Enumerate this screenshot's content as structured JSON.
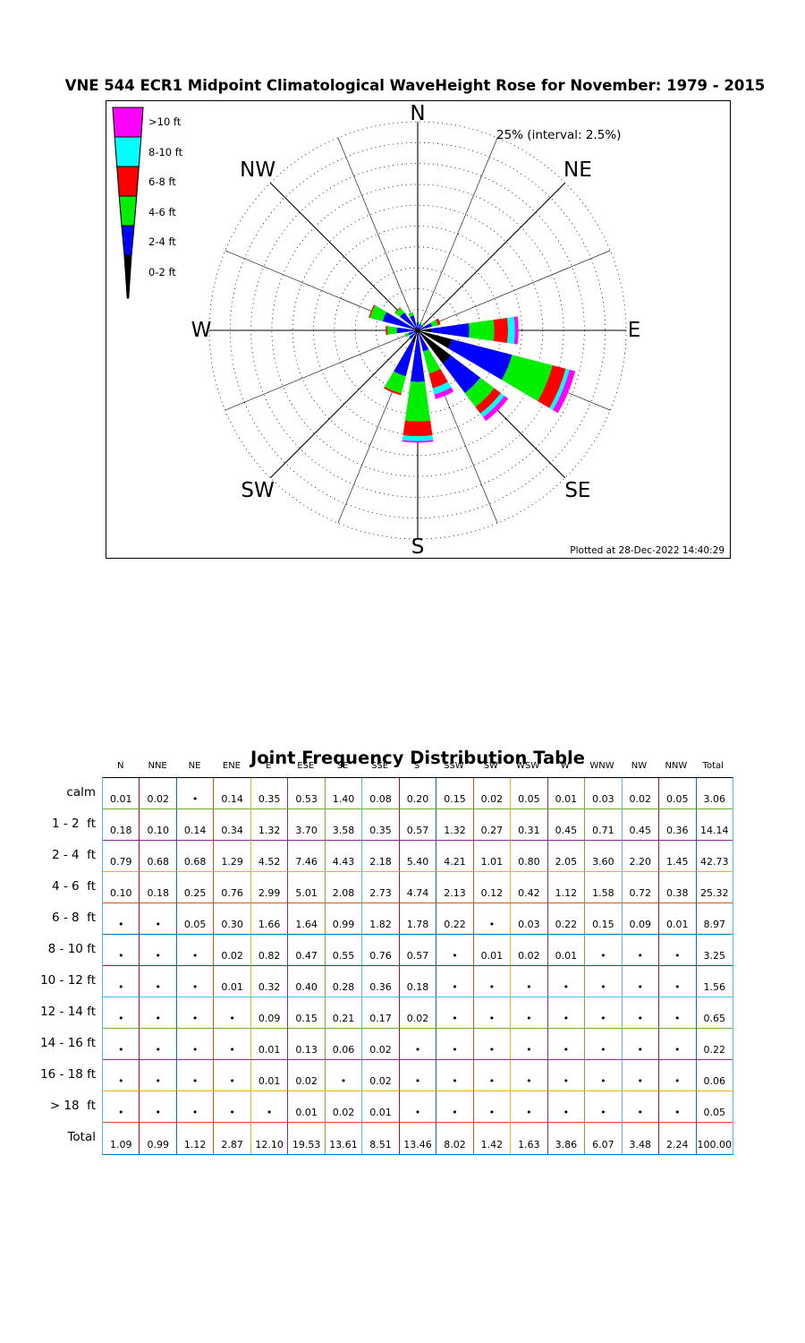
{
  "rose_panel": {
    "annotation": "25% (interval: 2.5%)",
    "footer": "Plotted at 28-Dec-2022 14:40:29",
    "legend_items": [
      {
        "label": ">10 ft",
        "color": "#ff00ff"
      },
      {
        "label": "8-10 ft",
        "color": "#00ffff"
      },
      {
        "label": "6-8 ft",
        "color": "#ff0000"
      },
      {
        "label": "4-6 ft",
        "color": "#00ee00"
      },
      {
        "label": "2-4 ft",
        "color": "#0000ff"
      },
      {
        "label": "0-2 ft",
        "color": "#000000"
      }
    ],
    "compass_labels": [
      {
        "label": "N",
        "angle": 0
      },
      {
        "label": "NE",
        "angle": 45
      },
      {
        "label": "E",
        "angle": 90
      },
      {
        "label": "SE",
        "angle": 135
      },
      {
        "label": "S",
        "angle": 180
      },
      {
        "label": "SW",
        "angle": 225
      },
      {
        "label": "W",
        "angle": 270
      },
      {
        "label": "NW",
        "angle": 315
      }
    ]
  },
  "chart_data": {
    "type": "rose",
    "title": "VNE 544 ECR1 Midpoint Climatological WaveHeight Rose for November: 1979 - 2015",
    "max_pct": 25,
    "ring_interval_pct": 2.5,
    "n_rings": 10,
    "directions": [
      "N",
      "NNE",
      "NE",
      "ENE",
      "E",
      "ESE",
      "SE",
      "SSE",
      "S",
      "SSW",
      "SW",
      "WSW",
      "W",
      "WNW",
      "NW",
      "NNW"
    ],
    "rose_bins": [
      {
        "label": "0-2 ft",
        "color": "#000000",
        "rows": [
          0,
          1
        ]
      },
      {
        "label": "2-4 ft",
        "color": "#0000ff",
        "rows": [
          2
        ]
      },
      {
        "label": "4-6 ft",
        "color": "#00ee00",
        "rows": [
          3
        ]
      },
      {
        "label": "6-8 ft",
        "color": "#ff0000",
        "rows": [
          4
        ]
      },
      {
        "label": "8-10 ft",
        "color": "#00ffff",
        "rows": [
          5
        ]
      },
      {
        "label": ">10 ft",
        "color": "#ff00ff",
        "rows": [
          6,
          7,
          8,
          9,
          10
        ]
      }
    ],
    "table": {
      "title": "Joint Frequency Distribution Table",
      "columns": [
        "N",
        "NNE",
        "NE",
        "ENE",
        "E",
        "ESE",
        "SE",
        "SSE",
        "S",
        "SSW",
        "SW",
        "WSW",
        "W",
        "WNW",
        "NW",
        "NNW",
        "Total"
      ],
      "rows": [
        {
          "label": "calm",
          "values": [
            "0.01",
            "0.02",
            "•",
            "0.14",
            "0.35",
            "0.53",
            "1.40",
            "0.08",
            "0.20",
            "0.15",
            "0.02",
            "0.05",
            "0.01",
            "0.03",
            "0.02",
            "0.05",
            "3.06"
          ]
        },
        {
          "label": "1 - 2  ft",
          "values": [
            "0.18",
            "0.10",
            "0.14",
            "0.34",
            "1.32",
            "3.70",
            "3.58",
            "0.35",
            "0.57",
            "1.32",
            "0.27",
            "0.31",
            "0.45",
            "0.71",
            "0.45",
            "0.36",
            "14.14"
          ]
        },
        {
          "label": "2 - 4  ft",
          "values": [
            "0.79",
            "0.68",
            "0.68",
            "1.29",
            "4.52",
            "7.46",
            "4.43",
            "2.18",
            "5.40",
            "4.21",
            "1.01",
            "0.80",
            "2.05",
            "3.60",
            "2.20",
            "1.45",
            "42.73"
          ]
        },
        {
          "label": "4 - 6  ft",
          "values": [
            "0.10",
            "0.18",
            "0.25",
            "0.76",
            "2.99",
            "5.01",
            "2.08",
            "2.73",
            "4.74",
            "2.13",
            "0.12",
            "0.42",
            "1.12",
            "1.58",
            "0.72",
            "0.38",
            "25.32"
          ]
        },
        {
          "label": "6 - 8  ft",
          "values": [
            "•",
            "•",
            "0.05",
            "0.30",
            "1.66",
            "1.64",
            "0.99",
            "1.82",
            "1.78",
            "0.22",
            "•",
            "0.03",
            "0.22",
            "0.15",
            "0.09",
            "0.01",
            "8.97"
          ]
        },
        {
          "label": "8 - 10 ft",
          "values": [
            "•",
            "•",
            "•",
            "0.02",
            "0.82",
            "0.47",
            "0.55",
            "0.76",
            "0.57",
            "•",
            "0.01",
            "0.02",
            "0.01",
            "•",
            "•",
            "•",
            "3.25"
          ]
        },
        {
          "label": "10 - 12 ft",
          "values": [
            "•",
            "•",
            "•",
            "0.01",
            "0.32",
            "0.40",
            "0.28",
            "0.36",
            "0.18",
            "•",
            "•",
            "•",
            "•",
            "•",
            "•",
            "•",
            "1.56"
          ]
        },
        {
          "label": "12 - 14 ft",
          "values": [
            "•",
            "•",
            "•",
            "•",
            "0.09",
            "0.15",
            "0.21",
            "0.17",
            "0.02",
            "•",
            "•",
            "•",
            "•",
            "•",
            "•",
            "•",
            "0.65"
          ]
        },
        {
          "label": "14 - 16 ft",
          "values": [
            "•",
            "•",
            "•",
            "•",
            "0.01",
            "0.13",
            "0.06",
            "0.02",
            "•",
            "•",
            "•",
            "•",
            "•",
            "•",
            "•",
            "•",
            "0.22"
          ]
        },
        {
          "label": "16 - 18 ft",
          "values": [
            "•",
            "•",
            "•",
            "•",
            "0.01",
            "0.02",
            "•",
            "0.02",
            "•",
            "•",
            "•",
            "•",
            "•",
            "•",
            "•",
            "•",
            "0.06"
          ]
        },
        {
          "label": "> 18  ft",
          "values": [
            "•",
            "•",
            "•",
            "•",
            "•",
            "0.01",
            "0.02",
            "0.01",
            "•",
            "•",
            "•",
            "•",
            "•",
            "•",
            "•",
            "•",
            "0.05"
          ]
        },
        {
          "label": "Total",
          "values": [
            "1.09",
            "0.99",
            "1.12",
            "2.87",
            "12.10",
            "19.53",
            "13.61",
            "8.51",
            "13.46",
            "8.02",
            "1.42",
            "1.63",
            "3.86",
            "6.07",
            "3.48",
            "2.24",
            "100.00"
          ]
        }
      ],
      "grid_colors": {
        "border_left": "#4DBEEE",
        "border_right": "#4DBEEE",
        "border_top": "#000000",
        "border_bottom": "#0072BD",
        "col_separators": [
          "#A2142F",
          "#0072BD",
          "#D95319",
          "#EDB120",
          "#7E2F8E",
          "#77AC30",
          "#4DBEEE",
          "#A2142F",
          "#0072BD",
          "#D95319",
          "#EDB120",
          "#7E2F8E",
          "#77AC30",
          "#4DBEEE",
          "#A2142F",
          "#0072BD"
        ],
        "row_separators": [
          "#77AC30",
          "#7E2F8E",
          "#EDB120",
          "#D95319",
          "#0072BD",
          "#A2142F",
          "#4DBEEE",
          "#77AC30",
          "#7E2F8E",
          "#EDB120",
          "#D95319"
        ]
      }
    }
  }
}
